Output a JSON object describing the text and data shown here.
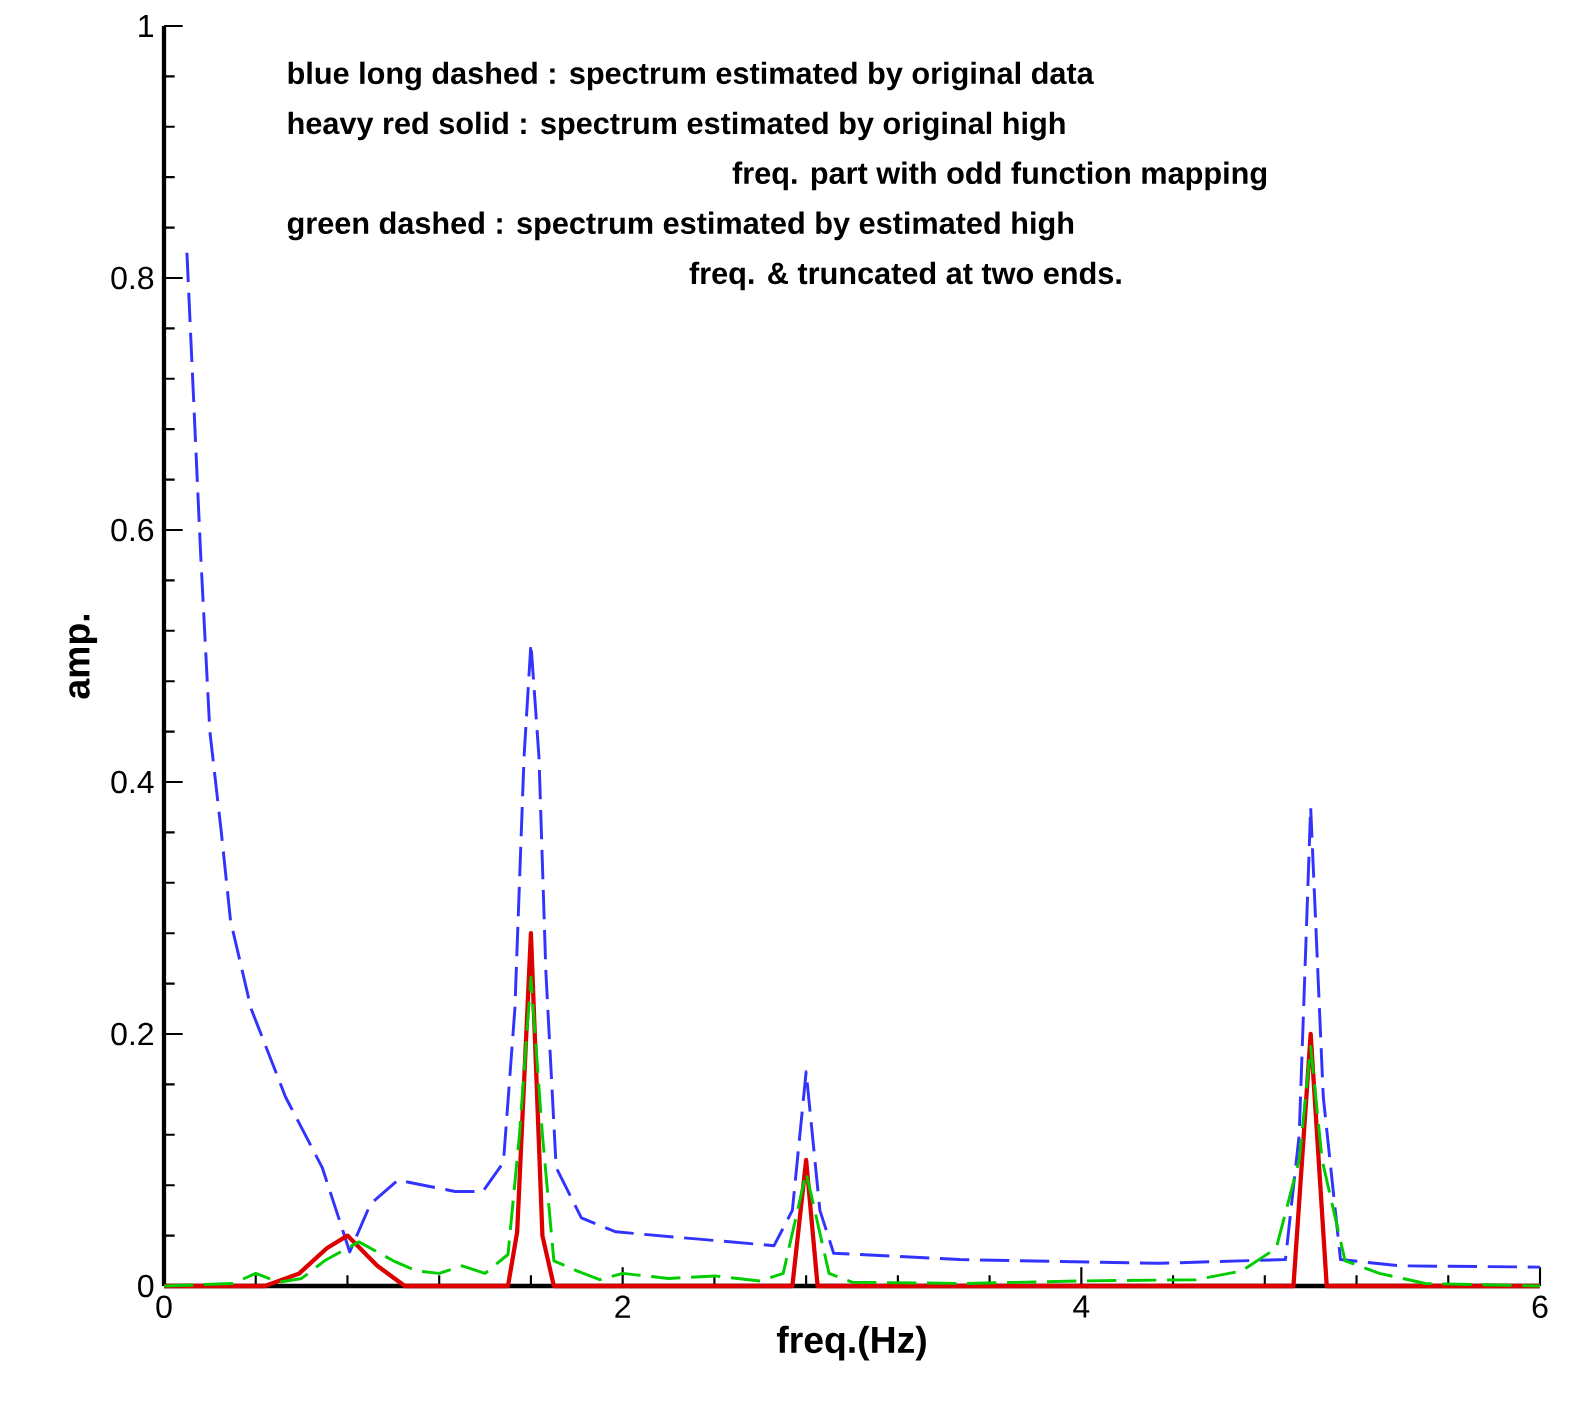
{
  "chart_data": {
    "type": "line",
    "xlabel": "freq.(Hz)",
    "ylabel": "amp.",
    "xlim": [
      0,
      6
    ],
    "ylim": [
      0,
      1
    ],
    "xticks": [
      0,
      2,
      4,
      6
    ],
    "yticks": [
      0,
      0.2,
      0.4,
      0.6,
      0.8,
      1
    ],
    "grid": false,
    "marker": "none",
    "annotations": [
      "blue long dashed : spectrum estimated by original data",
      "heavy red solid : spectrum estimated by original high",
      "freq. part with odd function mapping",
      "green dashed : spectrum estimated by estimated high",
      "freq. & truncated at two ends."
    ],
    "series": [
      {
        "color": "#3333ff",
        "line_style": "dashed",
        "x": [
          0.1,
          0.16,
          0.2,
          0.25,
          0.29,
          0.38,
          0.53,
          0.69,
          0.81,
          0.9,
          1.02,
          1.27,
          1.39,
          1.48,
          1.53,
          1.57,
          1.6,
          1.635,
          1.665,
          1.71,
          1.82,
          1.97,
          2.28,
          2.66,
          2.74,
          2.8,
          2.86,
          2.92,
          3.47,
          4.34,
          4.89,
          4.95,
          5.0,
          5.055,
          5.13,
          5.39,
          6.0
        ],
        "values": [
          0.82,
          0.58,
          0.44,
          0.36,
          0.29,
          0.22,
          0.15,
          0.094,
          0.027,
          0.065,
          0.084,
          0.075,
          0.075,
          0.098,
          0.22,
          0.42,
          0.51,
          0.42,
          0.25,
          0.094,
          0.054,
          0.043,
          0.038,
          0.032,
          0.06,
          0.17,
          0.06,
          0.026,
          0.021,
          0.018,
          0.021,
          0.12,
          0.38,
          0.15,
          0.021,
          0.016,
          0.015
        ]
      },
      {
        "color": "#dd0000",
        "line_style": "solid",
        "x": [
          0.0,
          0.44,
          0.59,
          0.71,
          0.8,
          0.93,
          1.05,
          1.5,
          1.54,
          1.6,
          1.65,
          1.7,
          2.74,
          2.8,
          2.85,
          4.925,
          5.0,
          5.07,
          6.0
        ],
        "values": [
          0.0,
          0.0,
          0.01,
          0.03,
          0.04,
          0.016,
          0.0,
          0.0,
          0.043,
          0.28,
          0.04,
          0.0,
          0.0,
          0.1,
          0.0,
          0.0,
          0.2,
          0.0,
          0.0
        ]
      },
      {
        "color": "#00cc00",
        "line_style": "dashed",
        "x": [
          0.0,
          0.3,
          0.4,
          0.5,
          0.6,
          0.7,
          0.85,
          1.0,
          1.1,
          1.2,
          1.3,
          1.4,
          1.5,
          1.55,
          1.6,
          1.65,
          1.7,
          1.8,
          1.9,
          2.0,
          2.2,
          2.4,
          2.6,
          2.7,
          2.8,
          2.9,
          3.0,
          3.5,
          4.0,
          4.5,
          4.7,
          4.85,
          4.95,
          5.0,
          5.05,
          5.15,
          5.3,
          5.5,
          6.0
        ],
        "values": [
          0.0,
          0.002,
          0.01,
          0.003,
          0.006,
          0.02,
          0.035,
          0.02,
          0.012,
          0.01,
          0.016,
          0.01,
          0.025,
          0.12,
          0.245,
          0.12,
          0.02,
          0.012,
          0.005,
          0.01,
          0.006,
          0.008,
          0.004,
          0.01,
          0.09,
          0.01,
          0.003,
          0.002,
          0.004,
          0.005,
          0.012,
          0.03,
          0.1,
          0.19,
          0.1,
          0.02,
          0.01,
          0.002,
          0.0
        ]
      }
    ]
  }
}
